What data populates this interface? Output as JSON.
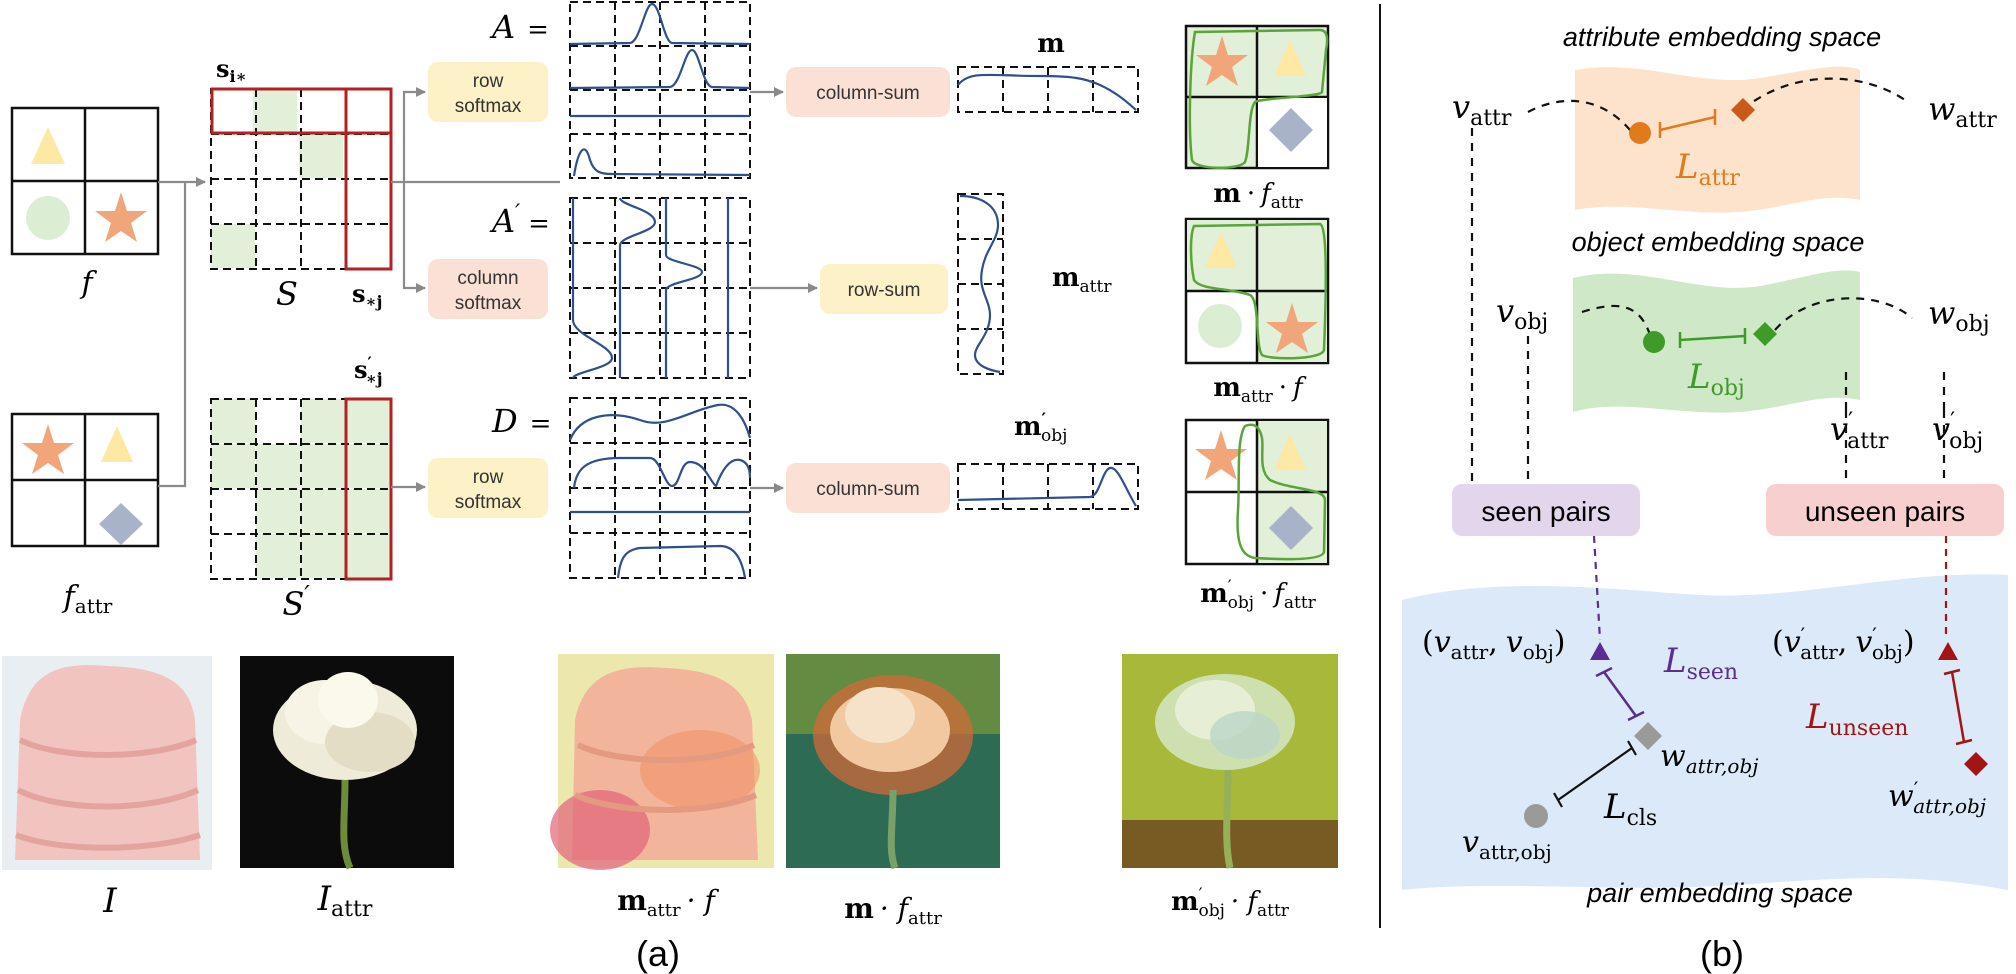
{
  "panel_a": {
    "caption": "(a)",
    "inputs": {
      "f_label": "f",
      "fattr_main": "f",
      "fattr_sub": "attr"
    },
    "sim": {
      "S_label": "S",
      "Sp_label": "S",
      "Sp_prime": "′",
      "si_main": "s",
      "si_sub": "i∗",
      "sj_main": "s",
      "sj_sub": "∗j",
      "spj_main": "s",
      "spj_prime": "′",
      "spj_sub": "∗j"
    },
    "ops": {
      "row_softmax_1_line1": "row",
      "row_softmax_1_line2": "softmax",
      "col_softmax_line1": "column",
      "col_softmax_line2": "softmax",
      "row_softmax_2_line1": "row",
      "row_softmax_2_line2": "softmax",
      "colsum_1": "column-sum",
      "rowsum": "row-sum",
      "colsum_2": "column-sum"
    },
    "matrices": {
      "A_label": "A",
      "A_eq": "=",
      "Ap_label": "A",
      "Ap_prime": "′",
      "Ap_eq": "=",
      "D_label": "D",
      "D_eq": "="
    },
    "masks": {
      "m_label": "m",
      "mattr_main": "m",
      "mattr_sub": "attr",
      "mobj_main": "m",
      "mobj_prime": "′",
      "mobj_sub": "obj"
    },
    "results": {
      "r1_m": "m",
      "r1_dot": "·",
      "r1_f": "f",
      "r1_sub": "attr",
      "r2_m": "m",
      "r2_sub": "attr",
      "r2_dot": "·",
      "r2_f": "f",
      "r3_m": "m",
      "r3_prime": "′",
      "r3_sub": "obj",
      "r3_dot": "·",
      "r3_f": "f",
      "r3_fsub": "attr"
    },
    "photos": {
      "I_main": "I",
      "Iattr_main": "I",
      "Iattr_sub": "attr",
      "p3_m": "m",
      "p3_sub": "attr",
      "p3_rest": "· f",
      "p4_m": "m",
      "p4_rest": "· f",
      "p4_sub": "attr",
      "p5_m": "m",
      "p5_prime": "′",
      "p5_sub": "obj",
      "p5_rest": "· f",
      "p5_fsub": "attr"
    }
  },
  "panel_b": {
    "caption": "(b)",
    "attr_space": "attribute embedding space",
    "obj_space": "object embedding space",
    "pair_space": "pair embedding space",
    "seen_pairs": "seen pairs",
    "unseen_pairs": "unseen pairs",
    "v": "v",
    "w": "w",
    "attr": "attr",
    "obj": "obj",
    "prime": "′",
    "L": "L",
    "L_attr_sub": "attr",
    "L_obj_sub": "obj",
    "L_seen_sub": "seen",
    "L_unseen_sub": "unseen",
    "L_cls_sub": "cls",
    "w_attr_obj_sub": "attr,obj",
    "v_attr_obj_sub": "attr,obj",
    "wp_attr_obj_sub": "attr,obj",
    "lp": "(",
    "rp": ")",
    "comma": ","
  },
  "colors": {
    "green_fill": "#e2efd9",
    "red_outline": "#b22222",
    "curve_blue": "#2f4f8f",
    "yellow_box": "#fdf1c7",
    "salmon_box": "#fbe1d5",
    "attr_space": "#fde3cb",
    "obj_space": "#cfe8c8",
    "pair_space": "#dce9f8",
    "seen_box": "#e3d6ec",
    "unseen_box": "#f7cfcf",
    "orange": "#e07a1a",
    "green": "#3f9b28",
    "purple": "#5b2d91",
    "dark_red": "#a31515"
  }
}
